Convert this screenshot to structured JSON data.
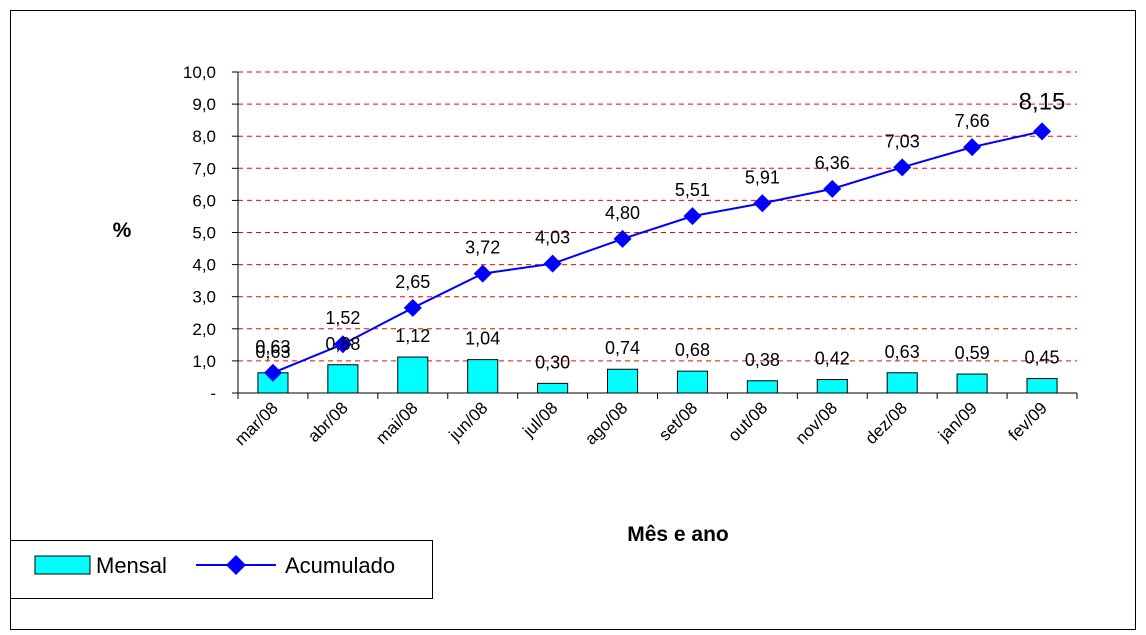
{
  "chart_data": {
    "type": "bar",
    "categories": [
      "mar/08",
      "abr/08",
      "mai/08",
      "jun/08",
      "jul/08",
      "ago/08",
      "set/08",
      "out/08",
      "nov/08",
      "dez/08",
      "jan/09",
      "fev/09"
    ],
    "series": [
      {
        "name": "Mensal",
        "type": "bar",
        "values": [
          0.63,
          0.88,
          1.12,
          1.04,
          0.3,
          0.74,
          0.68,
          0.38,
          0.42,
          0.63,
          0.59,
          0.45
        ],
        "labels": [
          "0,63",
          "0,88",
          "1,12",
          "1,04",
          "0,30",
          "0,74",
          "0,68",
          "0,38",
          "0,42",
          "0,63",
          "0,59",
          "0,45"
        ],
        "color": "#00FFFF"
      },
      {
        "name": "Acumulado",
        "type": "line",
        "values": [
          0.63,
          1.52,
          2.65,
          3.72,
          4.03,
          4.8,
          5.51,
          5.91,
          6.36,
          7.03,
          7.66,
          8.15
        ],
        "labels": [
          "0,63",
          "1,52",
          "2,65",
          "3,72",
          "4,03",
          "4,80",
          "5,51",
          "5,91",
          "6,36",
          "7,03",
          "7,66",
          "8,15"
        ],
        "color": "#0000FF",
        "marker": "diamond"
      }
    ],
    "ylabel": "%",
    "xlabel": "Mês e ano",
    "ylim": [
      0,
      10
    ],
    "yticks": [
      "-",
      "1,0",
      "2,0",
      "3,0",
      "4,0",
      "5,0",
      "6,0",
      "7,0",
      "8,0",
      "9,0",
      "10,0"
    ],
    "grid": true,
    "grid_color": "#FF0000",
    "legend_position": "bottom-left"
  }
}
